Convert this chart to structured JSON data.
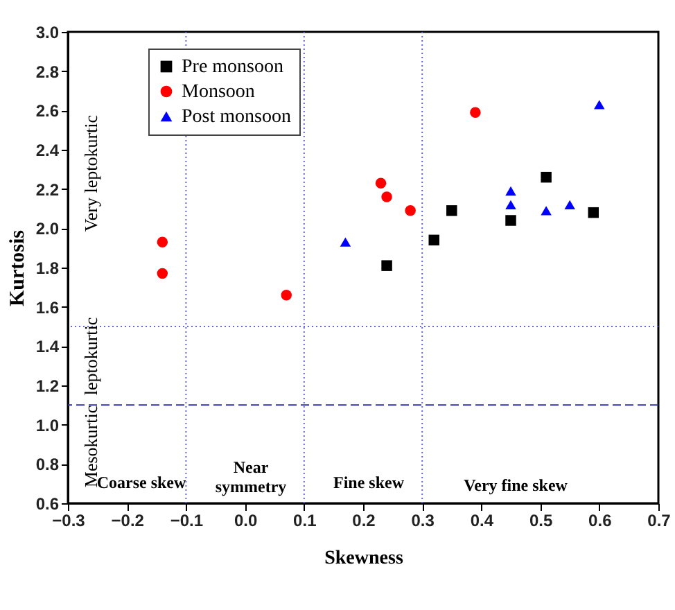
{
  "chart_data": {
    "type": "scatter",
    "xlabel": "Skewness",
    "ylabel": "Kurtosis",
    "xlim": [
      -0.3,
      0.7
    ],
    "ylim": [
      0.6,
      3.0
    ],
    "xticks": [
      -0.3,
      -0.2,
      -0.1,
      {
        "value": 0,
        "label": "0.0"
      },
      0.1,
      0.2,
      0.3,
      0.4,
      0.5,
      0.6,
      0.7
    ],
    "yticks": [
      0.6,
      0.8,
      {
        "value": 1,
        "label": "1.0"
      },
      1.2,
      1.4,
      1.6,
      1.8,
      {
        "value": 2,
        "label": "2.0"
      },
      2.2,
      2.4,
      2.6,
      2.8,
      {
        "value": 3,
        "label": "3.0"
      }
    ],
    "grid": false,
    "legend": "top left",
    "series": [
      {
        "name": "Pre monsoon",
        "color": "#000000",
        "marker": "square",
        "x": [
          0.24,
          0.32,
          0.35,
          0.45,
          0.51,
          0.59
        ],
        "values": [
          1.81,
          1.94,
          2.09,
          2.04,
          2.26,
          2.08
        ]
      },
      {
        "name": "Monsoon",
        "color": "#ff0000",
        "marker": "circle",
        "x": [
          -0.14,
          -0.14,
          0.07,
          0.23,
          0.24,
          0.28,
          0.39
        ],
        "values": [
          1.93,
          1.77,
          1.66,
          2.23,
          2.16,
          2.09,
          2.59
        ]
      },
      {
        "name": "Post monsoon",
        "color": "#0000ff",
        "marker": "triangle",
        "x": [
          0.17,
          0.45,
          0.45,
          0.51,
          0.55,
          0.6
        ],
        "values": [
          1.93,
          2.19,
          2.12,
          2.09,
          2.12,
          2.63
        ]
      }
    ],
    "ref_lines": [
      {
        "axis": "x",
        "value": -0.1,
        "color": "#6666dd",
        "line_style": "dotted"
      },
      {
        "axis": "x",
        "value": 0.1,
        "color": "#6666dd",
        "line_style": "dotted"
      },
      {
        "axis": "x",
        "value": 0.3,
        "color": "#6666dd",
        "line_style": "dotted"
      },
      {
        "axis": "y",
        "value": 1.5,
        "color": "#6666dd",
        "line_style": "dotted"
      },
      {
        "axis": "y",
        "value": 1.1,
        "color": "#333399",
        "line_style": "dashed"
      }
    ],
    "annotations": [
      "Coarse skew",
      "Near\nsymmetry",
      "Fine skew",
      "Very fine skew",
      "Mesokurtic",
      "leptokurtic",
      "Very leptokurtic"
    ]
  }
}
